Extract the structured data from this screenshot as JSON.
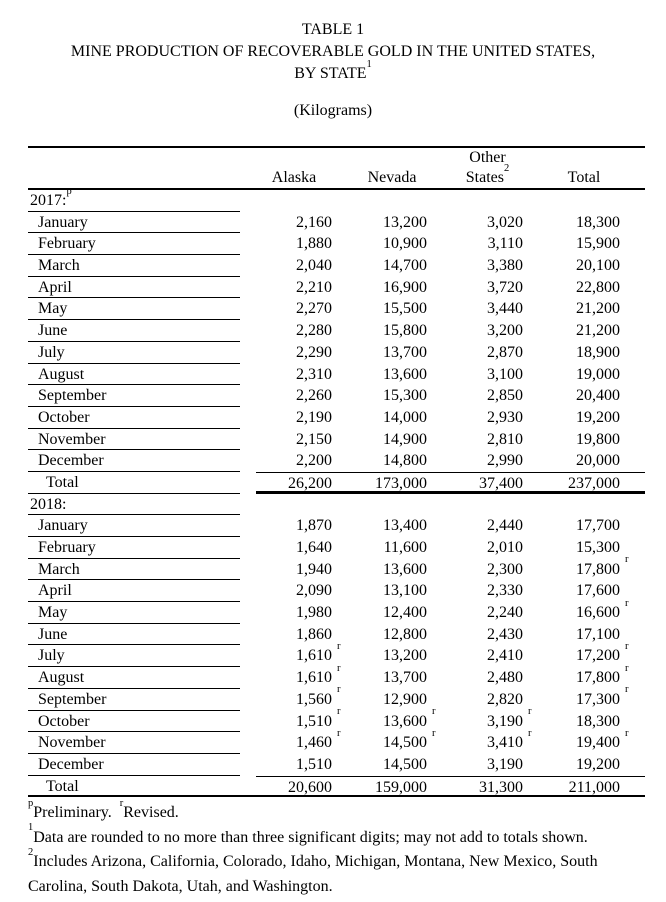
{
  "title": {
    "line1": "TABLE 1",
    "line2": "MINE PRODUCTION OF RECOVERABLE GOLD IN THE UNITED STATES,",
    "line3_base": "BY STATE",
    "line3_sup": "1"
  },
  "units": "(Kilograms)",
  "table": {
    "header": {
      "other_line1": "Other",
      "alaska": "Alaska",
      "nevada": "Nevada",
      "states_base": "States",
      "states_sup": "2",
      "total": "Total"
    },
    "sections": [
      {
        "year_label": "2017:",
        "year_sup": "p",
        "rows": [
          {
            "label": "January",
            "cells": [
              {
                "v": "2,160"
              },
              {
                "v": "13,200"
              },
              {
                "v": "3,020"
              },
              {
                "v": "18,300"
              }
            ]
          },
          {
            "label": "February",
            "cells": [
              {
                "v": "1,880"
              },
              {
                "v": "10,900"
              },
              {
                "v": "3,110"
              },
              {
                "v": "15,900"
              }
            ]
          },
          {
            "label": "March",
            "cells": [
              {
                "v": "2,040"
              },
              {
                "v": "14,700"
              },
              {
                "v": "3,380"
              },
              {
                "v": "20,100"
              }
            ]
          },
          {
            "label": "April",
            "cells": [
              {
                "v": "2,210"
              },
              {
                "v": "16,900"
              },
              {
                "v": "3,720"
              },
              {
                "v": "22,800"
              }
            ]
          },
          {
            "label": "May",
            "cells": [
              {
                "v": "2,270"
              },
              {
                "v": "15,500"
              },
              {
                "v": "3,440"
              },
              {
                "v": "21,200"
              }
            ]
          },
          {
            "label": "June",
            "cells": [
              {
                "v": "2,280"
              },
              {
                "v": "15,800"
              },
              {
                "v": "3,200"
              },
              {
                "v": "21,200"
              }
            ]
          },
          {
            "label": "July",
            "cells": [
              {
                "v": "2,290"
              },
              {
                "v": "13,700"
              },
              {
                "v": "2,870"
              },
              {
                "v": "18,900"
              }
            ]
          },
          {
            "label": "August",
            "cells": [
              {
                "v": "2,310"
              },
              {
                "v": "13,600"
              },
              {
                "v": "3,100"
              },
              {
                "v": "19,000"
              }
            ]
          },
          {
            "label": "September",
            "cells": [
              {
                "v": "2,260"
              },
              {
                "v": "15,300"
              },
              {
                "v": "2,850"
              },
              {
                "v": "20,400"
              }
            ]
          },
          {
            "label": "October",
            "cells": [
              {
                "v": "2,190"
              },
              {
                "v": "14,000"
              },
              {
                "v": "2,930"
              },
              {
                "v": "19,200"
              }
            ]
          },
          {
            "label": "November",
            "cells": [
              {
                "v": "2,150"
              },
              {
                "v": "14,900"
              },
              {
                "v": "2,810"
              },
              {
                "v": "19,800"
              }
            ]
          },
          {
            "label": "December",
            "cells": [
              {
                "v": "2,200"
              },
              {
                "v": "14,800"
              },
              {
                "v": "2,990"
              },
              {
                "v": "20,000"
              }
            ]
          }
        ],
        "total_row": {
          "label": "Total",
          "cells": [
            {
              "v": "26,200"
            },
            {
              "v": "173,000"
            },
            {
              "v": "37,400"
            },
            {
              "v": "237,000"
            }
          ]
        }
      },
      {
        "year_label": "2018:",
        "year_sup": "",
        "rows": [
          {
            "label": "January",
            "cells": [
              {
                "v": "1,870"
              },
              {
                "v": "13,400"
              },
              {
                "v": "2,440"
              },
              {
                "v": "17,700"
              }
            ]
          },
          {
            "label": "February",
            "cells": [
              {
                "v": "1,640"
              },
              {
                "v": "11,600"
              },
              {
                "v": "2,010"
              },
              {
                "v": "15,300"
              }
            ]
          },
          {
            "label": "March",
            "cells": [
              {
                "v": "1,940"
              },
              {
                "v": "13,600"
              },
              {
                "v": "2,300"
              },
              {
                "v": "17,800",
                "s": "r"
              }
            ]
          },
          {
            "label": "April",
            "cells": [
              {
                "v": "2,090"
              },
              {
                "v": "13,100"
              },
              {
                "v": "2,330"
              },
              {
                "v": "17,600"
              }
            ]
          },
          {
            "label": "May",
            "cells": [
              {
                "v": "1,980"
              },
              {
                "v": "12,400"
              },
              {
                "v": "2,240"
              },
              {
                "v": "16,600",
                "s": "r"
              }
            ]
          },
          {
            "label": "June",
            "cells": [
              {
                "v": "1,860"
              },
              {
                "v": "12,800"
              },
              {
                "v": "2,430"
              },
              {
                "v": "17,100"
              }
            ]
          },
          {
            "label": "July",
            "cells": [
              {
                "v": "1,610",
                "s": "r"
              },
              {
                "v": "13,200"
              },
              {
                "v": "2,410"
              },
              {
                "v": "17,200",
                "s": "r"
              }
            ]
          },
          {
            "label": "August",
            "cells": [
              {
                "v": "1,610",
                "s": "r"
              },
              {
                "v": "13,700"
              },
              {
                "v": "2,480"
              },
              {
                "v": "17,800",
                "s": "r"
              }
            ]
          },
          {
            "label": "September",
            "cells": [
              {
                "v": "1,560",
                "s": "r"
              },
              {
                "v": "12,900"
              },
              {
                "v": "2,820"
              },
              {
                "v": "17,300",
                "s": "r"
              }
            ]
          },
          {
            "label": "October",
            "cells": [
              {
                "v": "1,510",
                "s": "r"
              },
              {
                "v": "13,600",
                "s": "r"
              },
              {
                "v": "3,190",
                "s": "r"
              },
              {
                "v": "18,300"
              }
            ]
          },
          {
            "label": "November",
            "cells": [
              {
                "v": "1,460",
                "s": "r"
              },
              {
                "v": "14,500",
                "s": "r"
              },
              {
                "v": "3,410",
                "s": "r"
              },
              {
                "v": "19,400",
                "s": "r"
              }
            ]
          },
          {
            "label": "December",
            "cells": [
              {
                "v": "1,510"
              },
              {
                "v": "14,500"
              },
              {
                "v": "3,190"
              },
              {
                "v": "19,200"
              }
            ]
          }
        ],
        "total_row": {
          "label": "Total",
          "cells": [
            {
              "v": "20,600"
            },
            {
              "v": "159,000"
            },
            {
              "v": "31,300"
            },
            {
              "v": "211,000"
            }
          ]
        }
      }
    ]
  },
  "footnotes": [
    {
      "segments": [
        {
          "s": "p"
        },
        {
          "t": "Preliminary.  "
        },
        {
          "s": "r"
        },
        {
          "t": "Revised."
        }
      ]
    },
    {
      "segments": [
        {
          "s": "1"
        },
        {
          "t": "Data are rounded to no more than three significant digits; may not add to totals shown."
        }
      ]
    },
    {
      "segments": [
        {
          "s": "2"
        },
        {
          "t": "Includes Arizona, California, Colorado, Idaho, Michigan, Montana, New Mexico, South Carolina, South Dakota, Utah, and Washington."
        }
      ]
    }
  ]
}
